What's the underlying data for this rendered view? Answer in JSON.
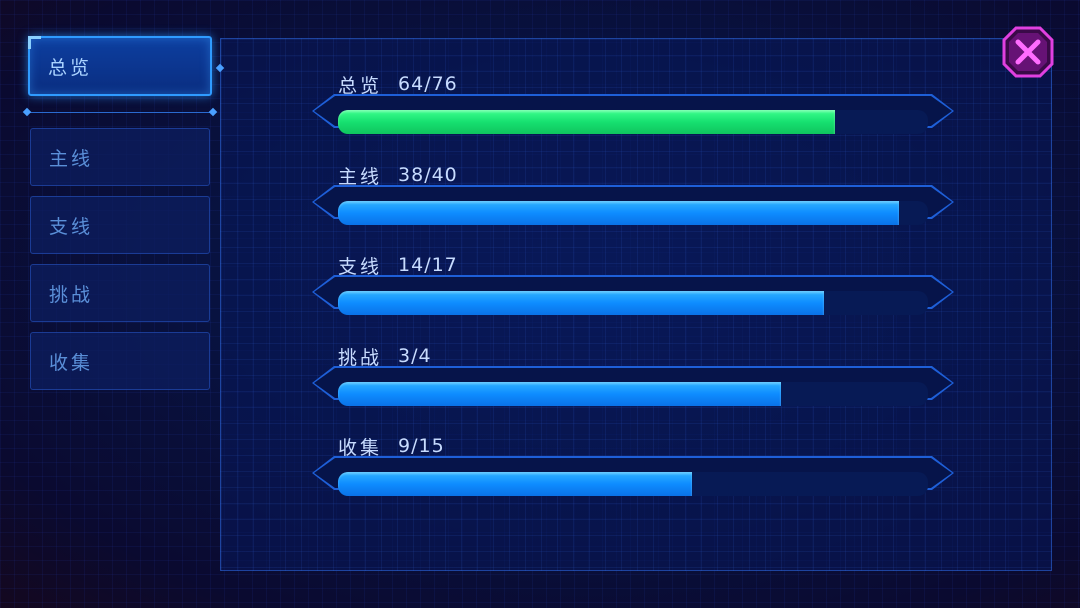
{
  "sidebar": {
    "tabs": [
      {
        "label": "总览",
        "active": true
      },
      {
        "label": "主线",
        "active": false
      },
      {
        "label": "支线",
        "active": false
      },
      {
        "label": "挑战",
        "active": false
      },
      {
        "label": "收集",
        "active": false
      }
    ]
  },
  "progress": [
    {
      "label": "总览",
      "count": "64/76",
      "percent": 84.2,
      "color": "#16e070"
    },
    {
      "label": "主线",
      "count": "38/40",
      "percent": 95,
      "color": "#0e8cff"
    },
    {
      "label": "支线",
      "count": "14/17",
      "percent": 82.4,
      "color": "#0e8cff"
    },
    {
      "label": "挑战",
      "count": "3/4",
      "percent": 75,
      "color": "#0e8cff"
    },
    {
      "label": "收集",
      "count": "9/15",
      "percent": 60,
      "color": "#0e8cff"
    }
  ],
  "close": {
    "icon": "close-icon",
    "color": "#e040e0"
  }
}
